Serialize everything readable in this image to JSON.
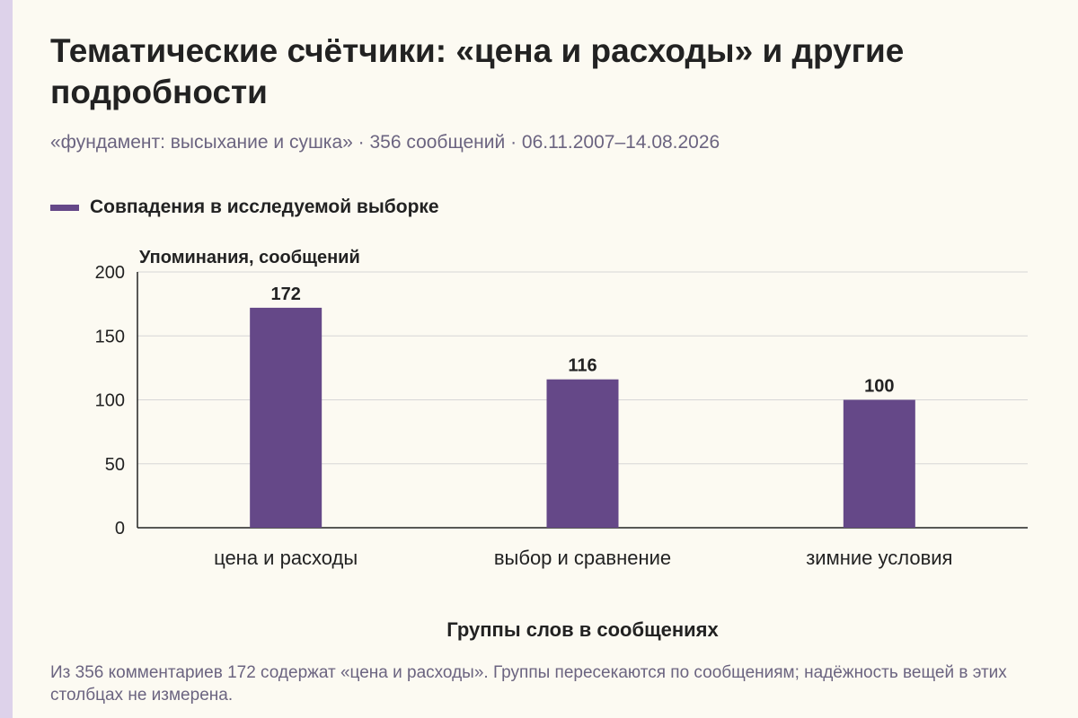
{
  "page": {
    "title": "Тематические счётчики: «цена и расходы» и другие подробности",
    "subtitle": "«фундамент: высыхание и сушка» · 356 сообщений · 06.11.2007–14.08.2026",
    "footnote": "Из 356 комментариев 172 содержат «цена и расходы». Группы пересекаются по сообщениям; надёжность вещей в этих столбцах не измерена."
  },
  "colors": {
    "bar": "#654888",
    "background": "#fcfaf2",
    "accent_stripe": "#ddd2ea",
    "grid": "#d6d6d6",
    "axis": "#222222",
    "muted_text": "#6b6480"
  },
  "chart_data": {
    "type": "bar",
    "categories": [
      "цена и расходы",
      "выбор и сравнение",
      "зимние условия"
    ],
    "series": [
      {
        "name": "Совпадения в исследуемой выборке",
        "values": [
          172,
          116,
          100
        ]
      }
    ],
    "ylabel": "Упоминания, сообщений",
    "xlabel": "Группы слов в сообщениях",
    "ylim": [
      0,
      200
    ],
    "yticks": [
      0,
      50,
      100,
      150,
      200
    ],
    "grid": true,
    "data_labels": true,
    "legend_position": "top-left"
  }
}
